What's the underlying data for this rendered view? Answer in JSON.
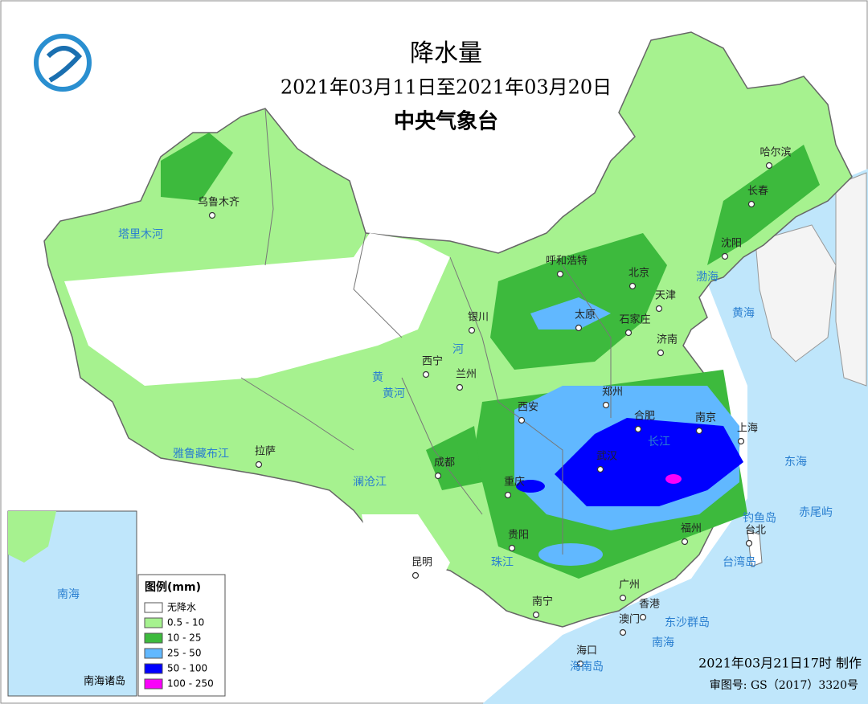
{
  "header": {
    "title": "降水量",
    "date_range": "2021年03月11日至2021年03月20日",
    "issuer": "中央气象台"
  },
  "cities": [
    "乌鲁木齐",
    "呼和浩特",
    "北京",
    "天津",
    "银川",
    "太原",
    "石家庄",
    "济南",
    "西宁",
    "兰州",
    "郑州",
    "西安",
    "合肥",
    "南京",
    "上海",
    "成都",
    "武汉",
    "重庆",
    "贵阳",
    "福州",
    "台北",
    "昆明",
    "南宁",
    "广州",
    "香港",
    "澳门",
    "海口",
    "哈尔滨",
    "长春",
    "沈阳",
    "拉萨"
  ],
  "waters": [
    "渤海",
    "黄海",
    "东海",
    "南海",
    "台湾岛",
    "钓鱼岛",
    "赤尾屿",
    "东沙群岛",
    "海南岛",
    "塔里木河",
    "雅鲁藏布江",
    "黄河",
    "黄",
    "河",
    "长江",
    "珠江",
    "澜沧江"
  ],
  "inset": {
    "label": "南海诸岛",
    "sea": "南海"
  },
  "legend": {
    "title": "图例(mm)",
    "items": [
      {
        "label": "无降水",
        "color": "#ffffff"
      },
      {
        "label": "0.5 - 10",
        "color": "#a6f28f"
      },
      {
        "label": "10 - 25",
        "color": "#3dba3d"
      },
      {
        "label": "25 - 50",
        "color": "#61b8ff"
      },
      {
        "label": "50 - 100",
        "color": "#0000ff"
      },
      {
        "label": "100 - 250",
        "color": "#fa00fa"
      }
    ]
  },
  "footer": {
    "made": "2021年03月21日17时 制作",
    "approval": "审图号: GS（2017）3320号"
  }
}
